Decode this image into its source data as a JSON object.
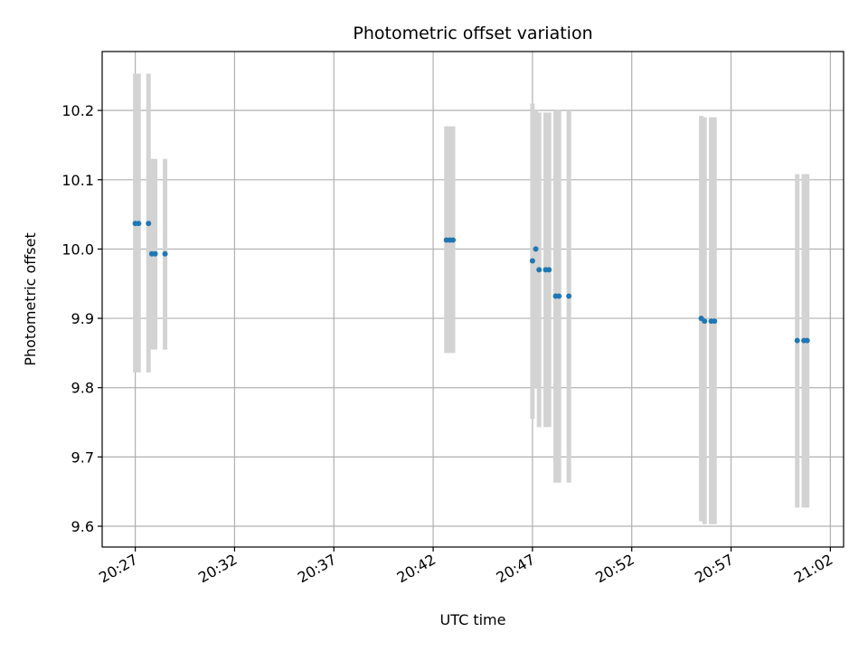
{
  "chart_data": {
    "type": "scatter",
    "title": "Photometric offset variation",
    "xlabel": "UTC time",
    "ylabel": "Photometric offset",
    "x_axis_type": "time",
    "xlim": [
      "20:25:20",
      "21:02:40"
    ],
    "ylim": [
      9.57,
      10.285
    ],
    "x_ticks": [
      "20:27",
      "20:32",
      "20:37",
      "20:42",
      "20:47",
      "20:52",
      "20:57",
      "21:02"
    ],
    "y_ticks": [
      9.6,
      9.7,
      9.8,
      9.9,
      10.0,
      10.1,
      10.2
    ],
    "y_tick_labels": [
      "9.6",
      "9.7",
      "9.8",
      "9.9",
      "10.0",
      "10.1",
      "10.2"
    ],
    "grid": true,
    "marker_color": "#1f77b4",
    "errorbar_color": "#d3d3d3",
    "points": [
      {
        "time": "20:27:00",
        "y": 10.037,
        "lo": 9.822,
        "hi": 10.253
      },
      {
        "time": "20:27:10",
        "y": 10.037,
        "lo": 9.822,
        "hi": 10.253
      },
      {
        "time": "20:27:40",
        "y": 10.037,
        "lo": 9.822,
        "hi": 10.253
      },
      {
        "time": "20:27:50",
        "y": 9.993,
        "lo": 9.855,
        "hi": 10.13
      },
      {
        "time": "20:28:00",
        "y": 9.993,
        "lo": 9.855,
        "hi": 10.13
      },
      {
        "time": "20:28:30",
        "y": 9.993,
        "lo": 9.855,
        "hi": 10.13
      },
      {
        "time": "20:42:40",
        "y": 10.013,
        "lo": 9.85,
        "hi": 10.177
      },
      {
        "time": "20:42:50",
        "y": 10.013,
        "lo": 9.85,
        "hi": 10.177
      },
      {
        "time": "20:43:00",
        "y": 10.013,
        "lo": 9.85,
        "hi": 10.177
      },
      {
        "time": "20:47:00",
        "y": 9.983,
        "lo": 9.755,
        "hi": 10.21
      },
      {
        "time": "20:47:10",
        "y": 10.0,
        "lo": 9.8,
        "hi": 10.2
      },
      {
        "time": "20:47:20",
        "y": 9.97,
        "lo": 9.743,
        "hi": 10.197
      },
      {
        "time": "20:47:40",
        "y": 9.97,
        "lo": 9.743,
        "hi": 10.197
      },
      {
        "time": "20:47:50",
        "y": 9.97,
        "lo": 9.743,
        "hi": 10.197
      },
      {
        "time": "20:48:10",
        "y": 9.932,
        "lo": 9.663,
        "hi": 10.2
      },
      {
        "time": "20:48:20",
        "y": 9.932,
        "lo": 9.663,
        "hi": 10.2
      },
      {
        "time": "20:48:50",
        "y": 9.932,
        "lo": 9.663,
        "hi": 10.2
      },
      {
        "time": "20:55:30",
        "y": 9.9,
        "lo": 9.607,
        "hi": 10.192
      },
      {
        "time": "20:55:40",
        "y": 9.896,
        "lo": 9.603,
        "hi": 10.19
      },
      {
        "time": "20:56:00",
        "y": 9.896,
        "lo": 9.603,
        "hi": 10.19
      },
      {
        "time": "20:56:10",
        "y": 9.896,
        "lo": 9.603,
        "hi": 10.19
      },
      {
        "time": "21:00:20",
        "y": 9.868,
        "lo": 9.627,
        "hi": 10.108
      },
      {
        "time": "21:00:40",
        "y": 9.868,
        "lo": 9.627,
        "hi": 10.108
      },
      {
        "time": "21:00:50",
        "y": 9.868,
        "lo": 9.627,
        "hi": 10.108
      }
    ]
  }
}
